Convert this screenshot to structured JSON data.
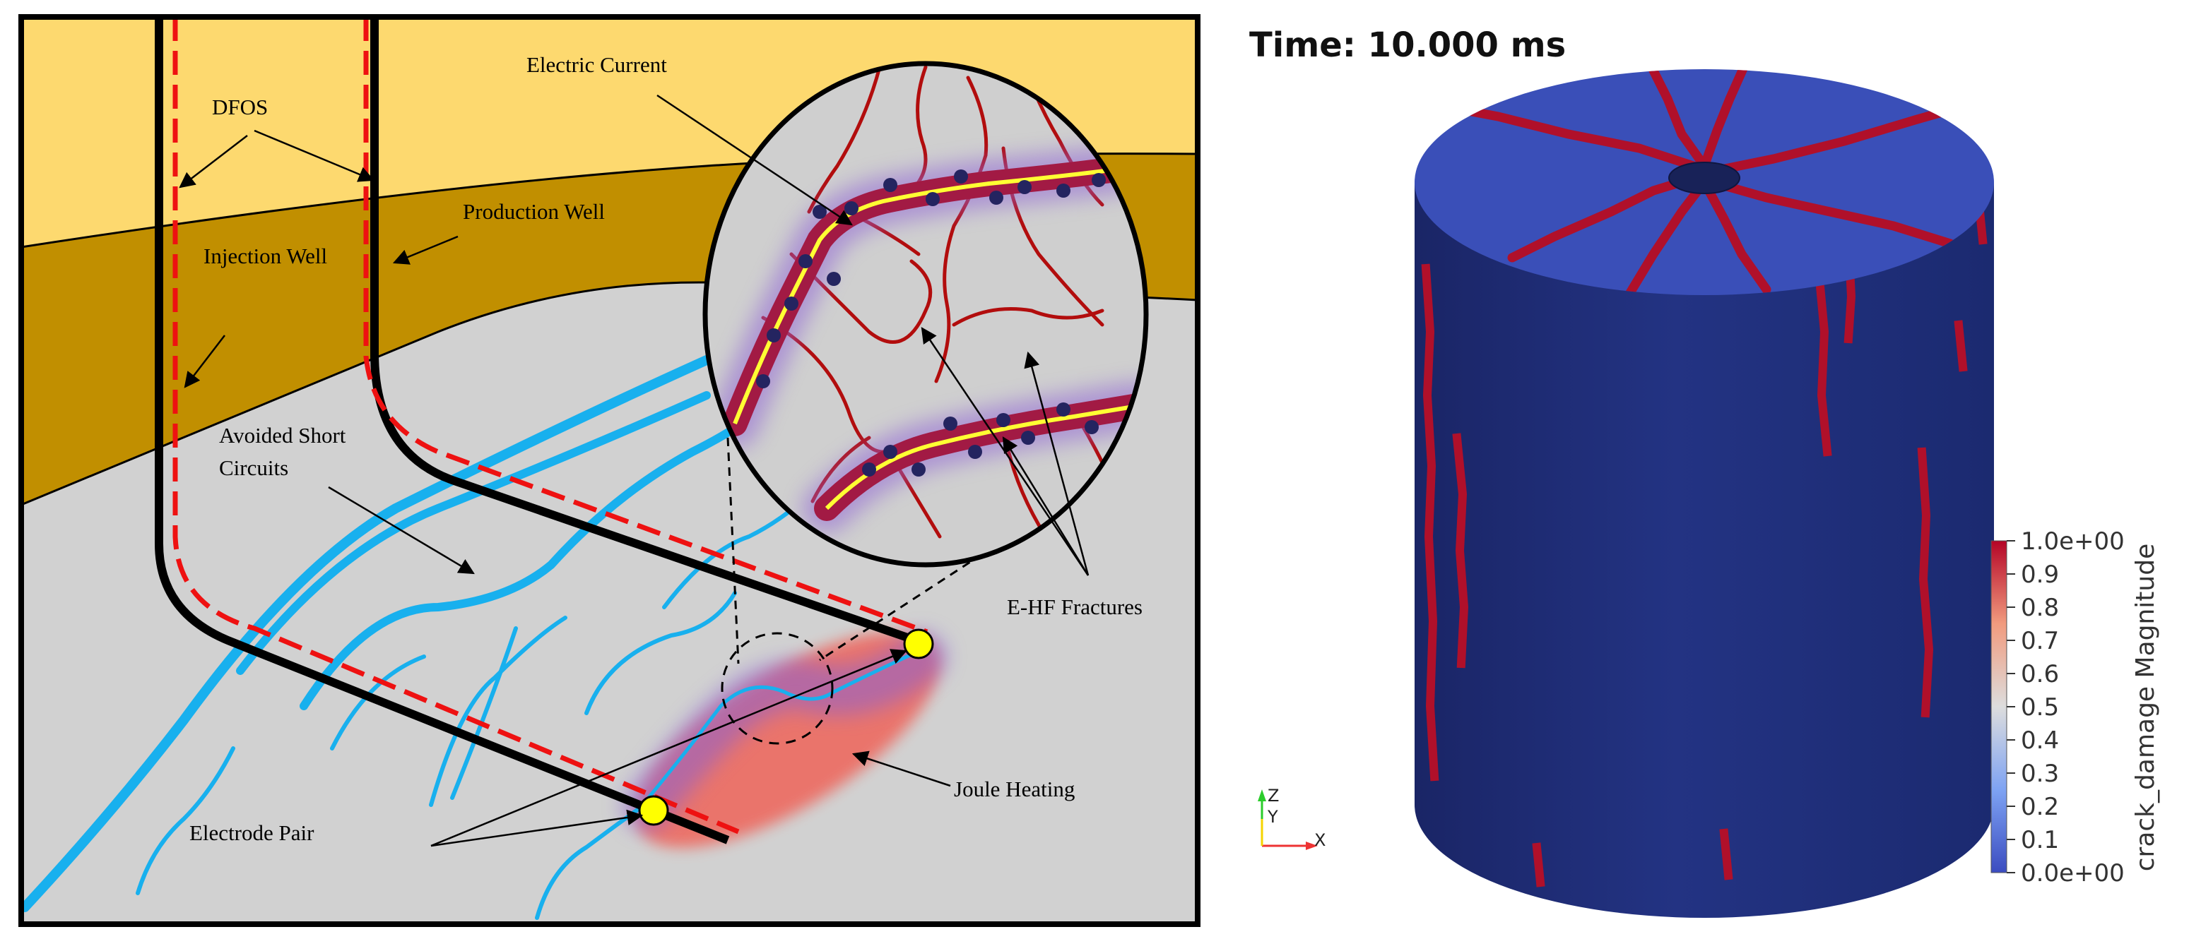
{
  "schematic": {
    "labels": {
      "dfos": "DFOS",
      "injection_well": "Injection Well",
      "production_well": "Production Well",
      "electric_current": "Electric Current",
      "avoided_short_line1": "Avoided Short",
      "avoided_short_line2": "Circuits",
      "ehf_fractures": "E-HF Fractures",
      "joule_heating": "Joule Heating",
      "electrode_pair": "Electrode Pair"
    },
    "colors": {
      "top_layer": "#fdd96f",
      "middle_layer": "#c18f00",
      "bottom_layer": "#d1d1d1",
      "well": "#000000",
      "dfos_dashed": "#ee1111",
      "fracture_blue": "#18b0ee",
      "fracture_red": "#b20d0d",
      "current_yellow": "#ffff33",
      "electrode": "#ffff00",
      "joule_heating": "#ec7066",
      "zoom_background": "#cfcfcf"
    }
  },
  "simulation": {
    "time_label": "Time: 10.000 ms",
    "colorbar": {
      "title": "crack_damage Magnitude",
      "ticks": [
        "1.0e+00",
        "0.9",
        "0.8",
        "0.7",
        "0.6",
        "0.5",
        "0.4",
        "0.3",
        "0.2",
        "0.1",
        "0.0e+00"
      ],
      "range": [
        0.0,
        1.0
      ],
      "colormap": "cool-to-warm",
      "low_color": "#3b4cc0",
      "mid_color": "#dddddd",
      "high_color": "#b40426"
    },
    "axes": {
      "z": "Z",
      "y": "Y",
      "x": "X"
    },
    "colors": {
      "cylinder_side": "#1c2a6e",
      "cylinder_top": "#3a4fb8",
      "crack": "#b0102a"
    }
  }
}
